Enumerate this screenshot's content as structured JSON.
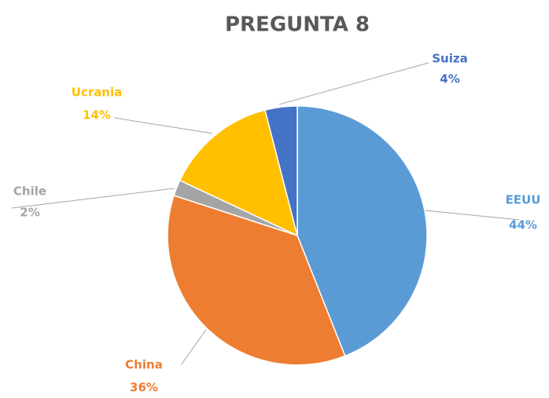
{
  "chart_data": {
    "type": "pie",
    "title": "PREGUNTA 8",
    "categories": [
      "EEUU",
      "China",
      "Chile",
      "Ucrania",
      "Suiza"
    ],
    "values": [
      44,
      36,
      2,
      14,
      4
    ],
    "value_labels": [
      "44%",
      "36%",
      "2%",
      "14%",
      "4%"
    ],
    "colors": [
      "#5b9bd5",
      "#ed7d31",
      "#a5a5a5",
      "#ffc000",
      "#4472c4"
    ]
  }
}
